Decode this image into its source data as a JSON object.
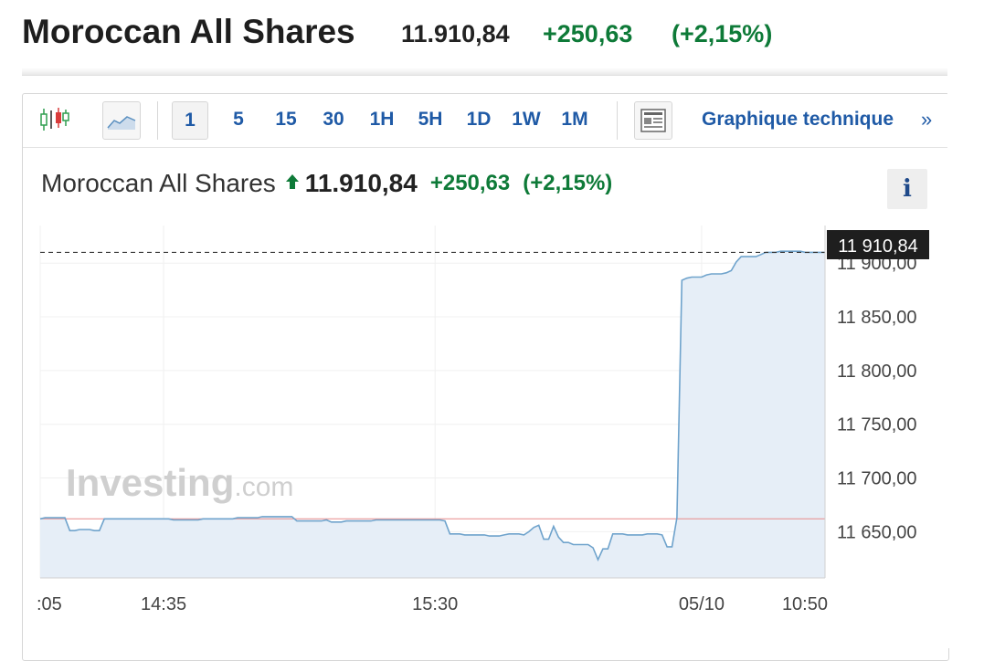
{
  "header": {
    "title": "Moroccan All Shares",
    "price": "11.910,84",
    "change": "+250,63",
    "change_pct": "(+2,15%)"
  },
  "toolbar": {
    "chart_type_icons": [
      "candlestick-icon",
      "area-chart-icon"
    ],
    "intervals": [
      "1",
      "5",
      "15",
      "30",
      "1H",
      "5H",
      "1D",
      "1W",
      "1M"
    ],
    "selected_interval": "1",
    "article_icon": "news-panel-icon",
    "technical_link": "Graphique technique",
    "technical_chevron": "»"
  },
  "quote": {
    "name": "Moroccan All Shares",
    "direction_icon": "up-arrow-icon",
    "price": "11.910,84",
    "change": "+250,63",
    "change_pct": "(+2,15%)",
    "info_label": "i"
  },
  "colors": {
    "positive": "#0e7a38",
    "link": "#1f5aa6",
    "line": "#6fa3cc",
    "area": "#e6eef7",
    "reference_line": "#e88a8a",
    "last_price_tag_bg": "#1e1e1e"
  },
  "chart_data": {
    "type": "area",
    "watermark": "Investing.com",
    "last_price_label": "11 910,84",
    "reference_value": 11662,
    "ylim": [
      11607,
      11935
    ],
    "y_ticks": [
      11650,
      11700,
      11750,
      11800,
      11850,
      11900
    ],
    "y_tick_labels": [
      "11 650,00",
      "11 700,00",
      "11 750,00",
      "11 800,00",
      "11 850,00",
      "11 900,00"
    ],
    "x_tick_labels": [
      ":05",
      "14:35",
      "15:30",
      "05/10",
      "10:50"
    ],
    "x_tick_index": [
      0,
      25,
      80,
      134,
      159
    ],
    "grid": true,
    "series": [
      {
        "values": [
          11662,
          11663,
          11663,
          11663,
          11663,
          11663,
          11651,
          11651,
          11652,
          11652,
          11652,
          11651,
          11651,
          11662,
          11662,
          11662,
          11662,
          11662,
          11662,
          11662,
          11662,
          11662,
          11662,
          11662,
          11662,
          11662,
          11662,
          11661,
          11661,
          11661,
          11661,
          11661,
          11661,
          11662,
          11662,
          11662,
          11662,
          11662,
          11662,
          11662,
          11663,
          11663,
          11663,
          11663,
          11663,
          11664,
          11664,
          11664,
          11664,
          11664,
          11664,
          11664,
          11660,
          11660,
          11660,
          11660,
          11660,
          11660,
          11661,
          11659,
          11659,
          11659,
          11660,
          11660,
          11660,
          11660,
          11660,
          11660,
          11661,
          11661,
          11661,
          11661,
          11661,
          11661,
          11661,
          11661,
          11661,
          11661,
          11661,
          11661,
          11661,
          11661,
          11660,
          11648,
          11648,
          11648,
          11647,
          11647,
          11647,
          11647,
          11647,
          11646,
          11646,
          11646,
          11647,
          11648,
          11648,
          11648,
          11647,
          11650,
          11654,
          11656,
          11643,
          11643,
          11655,
          11645,
          11640,
          11640,
          11638,
          11638,
          11638,
          11638,
          11635,
          11624,
          11634,
          11634,
          11648,
          11648,
          11648,
          11647,
          11647,
          11647,
          11647,
          11648,
          11648,
          11648,
          11647,
          11636,
          11636,
          11663,
          11884,
          11886,
          11887,
          11887,
          11887,
          11889,
          11890,
          11890,
          11890,
          11891,
          11893,
          11901,
          11906,
          11906,
          11906,
          11906,
          11908,
          11910,
          11910,
          11910,
          11911,
          11911,
          11911,
          11911,
          11911,
          11910,
          11910,
          11910,
          11910,
          11910
        ]
      }
    ]
  }
}
